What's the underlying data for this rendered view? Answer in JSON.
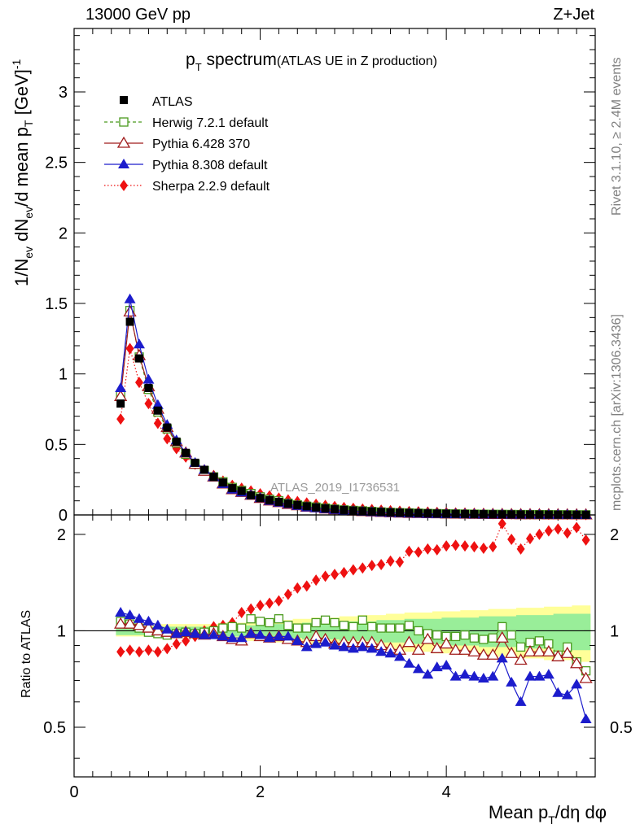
{
  "header": {
    "left": "13000 GeV pp",
    "right": "Z+Jet"
  },
  "plot_title": {
    "main": "p",
    "main_sub": "T",
    "main_rest": " spectrum",
    "paren": "(ATLAS UE in Z production)"
  },
  "watermark": "ATLAS_2019_I1736531",
  "side_text": {
    "rivet": "Rivet 3.1.10, ≥ 2.4M events",
    "mcplots": "mcplots.cern.ch [arXiv:1306.3436]"
  },
  "axes": {
    "xlabel": "Mean p",
    "xlabel_sub": "T",
    "xlabel_rest": "/dη dφ",
    "ylabel_top": "1/N",
    "ylabel_top_sub1": "ev",
    "ylabel_top_mid": " dN",
    "ylabel_top_sub2": "ev",
    "ylabel_top_mid2": "/d mean p",
    "ylabel_top_sub3": "T",
    "ylabel_top_unit": " [GeV]",
    "ylabel_top_sup": "-1",
    "ylabel_bottom": "Ratio to ATLAS",
    "x_ticks": [
      "0",
      "2",
      "4"
    ],
    "y_ticks_top": [
      "0",
      "0.5",
      "1",
      "1.5",
      "2",
      "2.5",
      "3"
    ],
    "y_ticks_ratio": [
      "0.5",
      "1",
      "2"
    ]
  },
  "legend": [
    {
      "name": "ATLAS",
      "color": "#000000"
    },
    {
      "name": "Herwig 7.2.1 default",
      "color": "#4a9a1e"
    },
    {
      "name": "Pythia 6.428 370",
      "color": "#a01c1c"
    },
    {
      "name": "Pythia 8.308 default",
      "color": "#1c1ccc"
    },
    {
      "name": "Sherpa 2.2.9 default",
      "color": "#ee1111"
    }
  ],
  "chart_data": {
    "type": "line",
    "x": [
      0.5,
      0.6,
      0.7,
      0.8,
      0.9,
      1.0,
      1.1,
      1.2,
      1.3,
      1.4,
      1.5,
      1.6,
      1.7,
      1.8,
      1.9,
      2.0,
      2.1,
      2.2,
      2.3,
      2.4,
      2.5,
      2.6,
      2.7,
      2.8,
      2.9,
      3.0,
      3.1,
      3.2,
      3.3,
      3.4,
      3.5,
      3.6,
      3.7,
      3.8,
      3.9,
      4.0,
      4.1,
      4.2,
      4.3,
      4.4,
      4.5,
      4.6,
      4.7,
      4.8,
      4.9,
      5.0,
      5.1,
      5.2,
      5.3,
      5.4,
      5.5
    ],
    "xlim": [
      0,
      5.6
    ],
    "ylim": [
      0,
      3.45
    ],
    "ratio_ylim": [
      0.35,
      2.3
    ],
    "ratio_yscale": "log",
    "series": [
      {
        "name": "ATLAS",
        "values": [
          0.79,
          1.37,
          1.11,
          0.9,
          0.74,
          0.62,
          0.52,
          0.44,
          0.37,
          0.32,
          0.27,
          0.23,
          0.19,
          0.17,
          0.14,
          0.12,
          0.105,
          0.092,
          0.08,
          0.07,
          0.061,
          0.053,
          0.046,
          0.04,
          0.035,
          0.031,
          0.027,
          0.024,
          0.021,
          0.018,
          0.016,
          0.014,
          0.0125,
          0.011,
          0.0097,
          0.0086,
          0.0076,
          0.0067,
          0.0059,
          0.0052,
          0.0046,
          0.004,
          0.0036,
          0.0032,
          0.0028,
          0.0025,
          0.0022,
          0.0019,
          0.0017,
          0.0015,
          0.0013
        ],
        "ratio": [
          1,
          1,
          1,
          1,
          1,
          1,
          1,
          1,
          1,
          1,
          1,
          1,
          1,
          1,
          1,
          1,
          1,
          1,
          1,
          1,
          1,
          1,
          1,
          1,
          1,
          1,
          1,
          1,
          1,
          1,
          1,
          1,
          1,
          1,
          1,
          1,
          1,
          1,
          1,
          1,
          1,
          1,
          1,
          1,
          1,
          1,
          1,
          1,
          1,
          1,
          1
        ]
      },
      {
        "name": "Herwig 7.2.1 default",
        "values": [
          0.85,
          1.45,
          1.12,
          0.89,
          0.73,
          0.61,
          0.51,
          0.43,
          0.36,
          0.315,
          0.27,
          0.235,
          0.195,
          0.174,
          0.152,
          0.128,
          0.111,
          0.1,
          0.083,
          0.071,
          0.062,
          0.056,
          0.049,
          0.042,
          0.036,
          0.032,
          0.029,
          0.025,
          0.021,
          0.018,
          0.016,
          0.0145,
          0.0125,
          0.0107,
          0.0094,
          0.0083,
          0.0073,
          0.0065,
          0.0056,
          0.0049,
          0.0044,
          0.0041,
          0.0035,
          0.0029,
          0.0026,
          0.0023,
          0.002,
          0.0016,
          0.0015,
          0.0012,
          0.001
        ],
        "ratio": [
          1.07,
          1.05,
          1.02,
          0.99,
          0.98,
          0.97,
          0.98,
          0.99,
          0.98,
          0.99,
          1.0,
          1.02,
          1.03,
          1.02,
          1.09,
          1.07,
          1.06,
          1.09,
          1.04,
          1.02,
          1.02,
          1.06,
          1.08,
          1.06,
          1.04,
          1.03,
          1.08,
          1.03,
          1.02,
          1.02,
          1.02,
          1.04,
          1.0,
          0.98,
          0.97,
          0.96,
          0.96,
          0.97,
          0.95,
          0.94,
          0.95,
          1.03,
          0.97,
          0.89,
          0.92,
          0.93,
          0.91,
          0.84,
          0.89,
          0.8,
          0.75
        ]
      },
      {
        "name": "Pythia 6.428 370",
        "values": [
          0.84,
          1.44,
          1.13,
          0.91,
          0.75,
          0.62,
          0.52,
          0.44,
          0.36,
          0.31,
          0.27,
          0.22,
          0.18,
          0.16,
          0.14,
          0.118,
          0.1,
          0.088,
          0.075,
          0.066,
          0.056,
          0.051,
          0.043,
          0.037,
          0.032,
          0.028,
          0.025,
          0.022,
          0.019,
          0.016,
          0.014,
          0.012,
          0.011,
          0.0095,
          0.0085,
          0.0076,
          0.0066,
          0.0058,
          0.005,
          0.0043,
          0.0039,
          0.0038,
          0.003,
          0.0026,
          0.0024,
          0.0021,
          0.0019,
          0.0016,
          0.0014,
          0.0012,
          0.001
        ],
        "ratio": [
          1.05,
          1.05,
          1.04,
          1.02,
          1.0,
          0.99,
          0.98,
          0.99,
          0.98,
          0.97,
          0.98,
          0.96,
          0.94,
          0.93,
          0.98,
          0.96,
          0.95,
          0.96,
          0.94,
          0.93,
          0.92,
          0.96,
          0.94,
          0.91,
          0.92,
          0.92,
          0.92,
          0.92,
          0.9,
          0.88,
          0.87,
          0.92,
          0.87,
          0.94,
          0.88,
          0.91,
          0.87,
          0.87,
          0.86,
          0.84,
          0.84,
          0.95,
          0.85,
          0.81,
          0.86,
          0.86,
          0.86,
          0.83,
          0.85,
          0.79,
          0.71
        ]
      },
      {
        "name": "Pythia 8.308 default",
        "values": [
          0.9,
          1.53,
          1.21,
          0.96,
          0.78,
          0.64,
          0.53,
          0.44,
          0.37,
          0.32,
          0.27,
          0.22,
          0.18,
          0.16,
          0.14,
          0.12,
          0.1,
          0.088,
          0.077,
          0.065,
          0.054,
          0.048,
          0.042,
          0.036,
          0.031,
          0.027,
          0.024,
          0.021,
          0.018,
          0.015,
          0.013,
          0.011,
          0.0095,
          0.008,
          0.0075,
          0.0067,
          0.0055,
          0.0049,
          0.0043,
          0.0037,
          0.0033,
          0.0033,
          0.0025,
          0.0019,
          0.002,
          0.0018,
          0.0016,
          0.0012,
          0.0011,
          0.001,
          0.0007
        ],
        "ratio": [
          1.14,
          1.12,
          1.09,
          1.07,
          1.04,
          1.01,
          0.98,
          0.99,
          0.98,
          0.97,
          0.97,
          0.96,
          0.95,
          0.95,
          0.98,
          0.97,
          0.95,
          0.96,
          0.96,
          0.93,
          0.89,
          0.91,
          0.92,
          0.9,
          0.89,
          0.88,
          0.89,
          0.88,
          0.86,
          0.85,
          0.83,
          0.79,
          0.76,
          0.73,
          0.77,
          0.78,
          0.72,
          0.73,
          0.72,
          0.71,
          0.72,
          0.82,
          0.69,
          0.6,
          0.72,
          0.72,
          0.73,
          0.64,
          0.63,
          0.68,
          0.53
        ]
      },
      {
        "name": "Sherpa 2.2.9 default",
        "values": [
          0.68,
          1.18,
          0.94,
          0.79,
          0.65,
          0.54,
          0.47,
          0.41,
          0.36,
          0.32,
          0.28,
          0.24,
          0.21,
          0.19,
          0.17,
          0.15,
          0.135,
          0.12,
          0.107,
          0.095,
          0.085,
          0.076,
          0.068,
          0.06,
          0.053,
          0.047,
          0.042,
          0.038,
          0.034,
          0.03,
          0.027,
          0.024,
          0.022,
          0.02,
          0.018,
          0.016,
          0.014,
          0.013,
          0.011,
          0.01,
          0.009,
          0.0085,
          0.0075,
          0.0065,
          0.0058,
          0.0052,
          0.0046,
          0.0041,
          0.0036,
          0.0032,
          0.0025
        ],
        "ratio": [
          0.86,
          0.87,
          0.86,
          0.87,
          0.86,
          0.88,
          0.91,
          0.93,
          0.96,
          1.0,
          1.03,
          1.04,
          1.06,
          1.14,
          1.17,
          1.2,
          1.22,
          1.24,
          1.3,
          1.36,
          1.38,
          1.44,
          1.48,
          1.5,
          1.52,
          1.55,
          1.57,
          1.6,
          1.61,
          1.65,
          1.64,
          1.77,
          1.76,
          1.8,
          1.79,
          1.84,
          1.85,
          1.84,
          1.83,
          1.81,
          1.83,
          2.16,
          1.93,
          1.8,
          1.94,
          2.0,
          2.05,
          2.08,
          2.02,
          2.1,
          1.92
        ]
      }
    ],
    "band_yellow_halfwidth": [
      0.04,
      0.04,
      0.04,
      0.04,
      0.05,
      0.05,
      0.05,
      0.05,
      0.05,
      0.05,
      0.05,
      0.06,
      0.06,
      0.06,
      0.07,
      0.07,
      0.07,
      0.08,
      0.08,
      0.09,
      0.09,
      0.1,
      0.1,
      0.1,
      0.11,
      0.11,
      0.12,
      0.12,
      0.12,
      0.13,
      0.13,
      0.14,
      0.14,
      0.14,
      0.15,
      0.15,
      0.15,
      0.16,
      0.16,
      0.16,
      0.17,
      0.17,
      0.17,
      0.18,
      0.18,
      0.18,
      0.19,
      0.19,
      0.19,
      0.2,
      0.2
    ],
    "band_green_halfwidth": [
      0.03,
      0.03,
      0.03,
      0.03,
      0.03,
      0.03,
      0.03,
      0.03,
      0.03,
      0.03,
      0.03,
      0.04,
      0.04,
      0.04,
      0.04,
      0.04,
      0.05,
      0.05,
      0.05,
      0.05,
      0.06,
      0.06,
      0.06,
      0.06,
      0.07,
      0.07,
      0.07,
      0.07,
      0.08,
      0.08,
      0.08,
      0.09,
      0.09,
      0.09,
      0.09,
      0.1,
      0.1,
      0.1,
      0.1,
      0.11,
      0.11,
      0.11,
      0.11,
      0.12,
      0.12,
      0.12,
      0.12,
      0.13,
      0.13,
      0.13,
      0.13
    ]
  }
}
